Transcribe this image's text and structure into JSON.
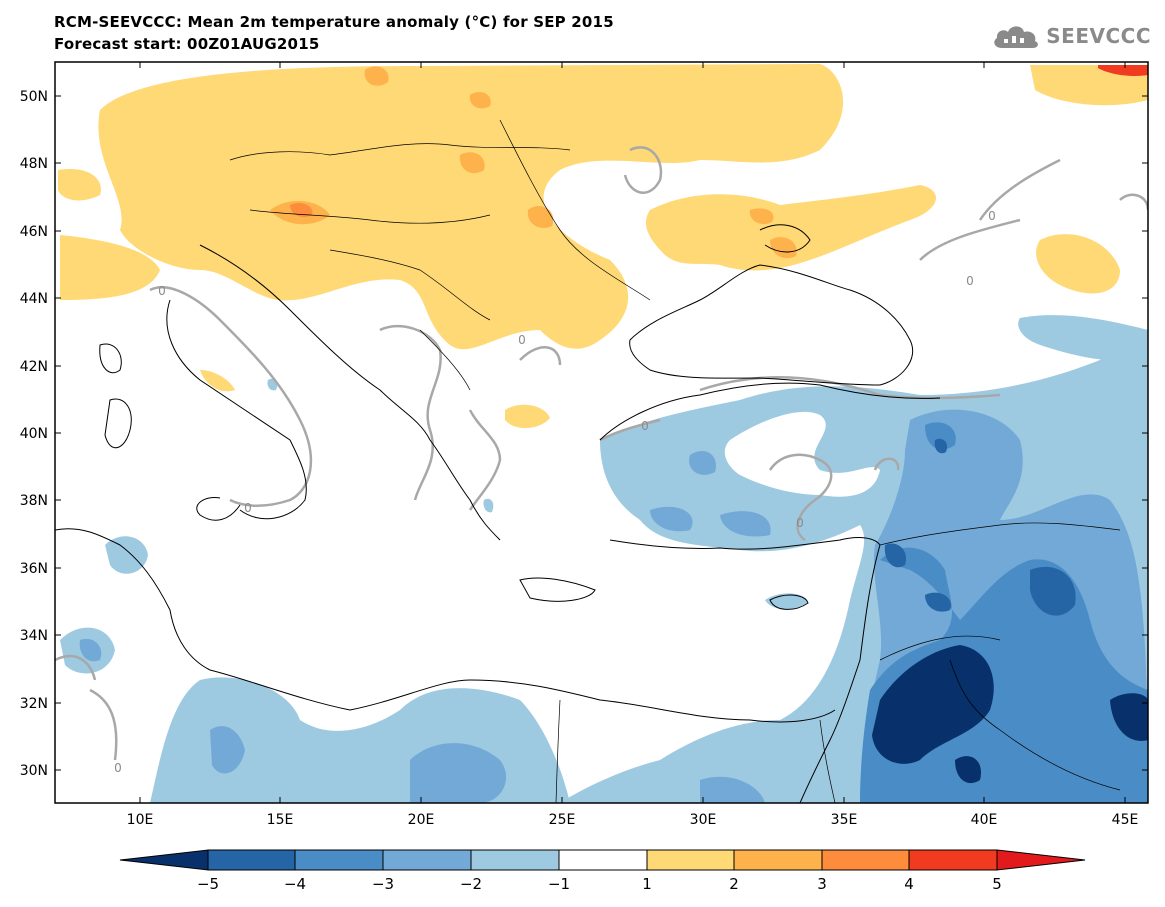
{
  "header": {
    "title": "RCM-SEEVCCC: Mean 2m temperature anomaly (°C) for SEP 2015",
    "subtitle": "Forecast start: 00Z01AUG2015"
  },
  "logo": {
    "text": "SEEVCCC",
    "icon": "cloud-logo-icon"
  },
  "map": {
    "lat_labels": [
      "50N",
      "48N",
      "46N",
      "44N",
      "42N",
      "40N",
      "38N",
      "36N",
      "34N",
      "32N",
      "30N"
    ],
    "lon_labels": [
      "10E",
      "15E",
      "20E",
      "25E",
      "30E",
      "35E",
      "40E",
      "45E"
    ],
    "contour_label": "0",
    "colors": {
      "frame": "#000000",
      "coast": "#000000",
      "contour": "#a8a8a8"
    }
  },
  "legend": {
    "levels": [
      "−5",
      "−4",
      "−3",
      "−2",
      "−1",
      "1",
      "2",
      "3",
      "4",
      "5"
    ],
    "colors": [
      "#08306b",
      "#2565a6",
      "#4a8cc6",
      "#72a9d6",
      "#9ecae1",
      "#ffffff",
      "#fed976",
      "#feb24c",
      "#fd8d3c",
      "#f03b20",
      "#e31a1c"
    ]
  }
}
